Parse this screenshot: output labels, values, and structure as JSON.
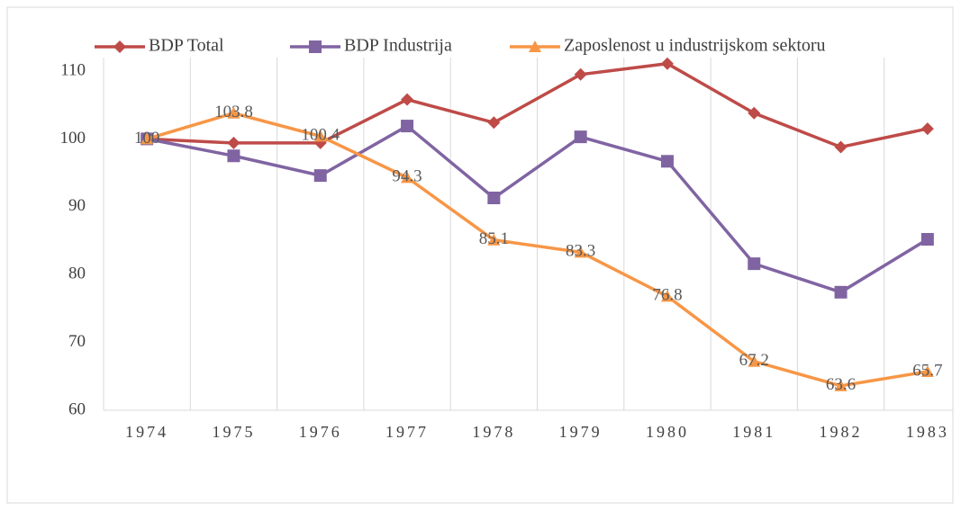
{
  "chart_data": {
    "type": "line",
    "categories": [
      "1974",
      "1975",
      "1976",
      "1977",
      "1978",
      "1979",
      "1980",
      "1981",
      "1982",
      "1983"
    ],
    "series": [
      {
        "name": "BDP Total",
        "color": "#be4b48",
        "marker": "diamond",
        "values": [
          100,
          99.4,
          99.4,
          105.8,
          102.4,
          109.5,
          111.1,
          103.8,
          98.8,
          101.5
        ]
      },
      {
        "name": "BDP Industrija",
        "color": "#8064a2",
        "marker": "square",
        "values": [
          100,
          97.5,
          94.6,
          101.9,
          91.3,
          100.3,
          96.7,
          81.6,
          77.4,
          85.2
        ]
      },
      {
        "name": "Zaposlenost u industrijskom sektoru",
        "color": "#f79646",
        "marker": "triangle",
        "data_labels": true,
        "values": [
          100,
          103.8,
          100.4,
          94.3,
          85.1,
          83.3,
          76.8,
          67.2,
          63.6,
          65.7
        ]
      }
    ],
    "ylim": [
      60,
      112
    ],
    "yticks": [
      60,
      70,
      80,
      90,
      100,
      110
    ],
    "grid": "vertical",
    "legend": "top"
  }
}
